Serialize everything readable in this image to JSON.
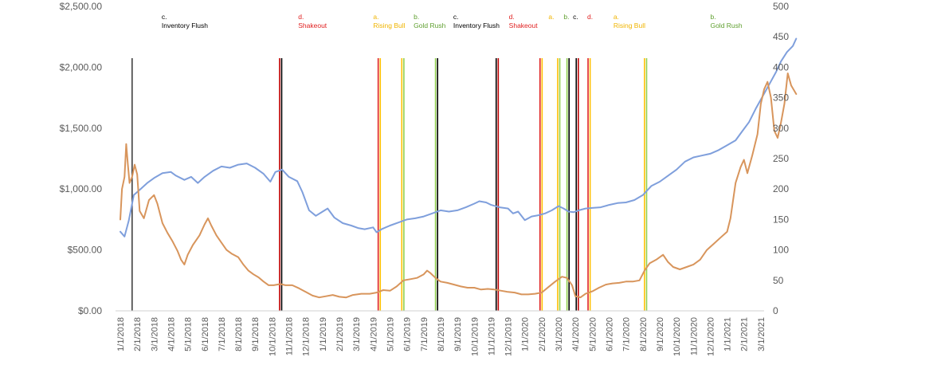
{
  "chart_data": {
    "type": "line",
    "title": "",
    "xlabel": "",
    "ylabel_left": "",
    "ylabel_right": "",
    "ylim_left": [
      0,
      2500
    ],
    "ylim_right": [
      0,
      500
    ],
    "y_ticks_left": [
      "$0.00",
      "$500.00",
      "$1,000.00",
      "$1,500.00",
      "$2,000.00",
      "$2,500.00"
    ],
    "y_ticks_right": [
      "0",
      "50",
      "100",
      "150",
      "200",
      "250",
      "300",
      "350",
      "400",
      "450",
      "500"
    ],
    "x_ticks": [
      "1/1/2018",
      "2/1/2018",
      "3/1/2018",
      "4/1/2018",
      "5/1/2018",
      "6/1/2018",
      "7/1/2018",
      "8/1/2018",
      "9/1/2018",
      "10/1/2018",
      "11/1/2018",
      "12/1/2018",
      "1/1/2019",
      "2/1/2019",
      "3/1/2019",
      "4/1/2019",
      "5/1/2019",
      "6/1/2019",
      "7/1/2019",
      "8/1/2019",
      "9/1/2019",
      "10/1/2019",
      "11/1/2019",
      "12/1/2019",
      "1/1/2020",
      "2/1/2020",
      "3/1/2020",
      "4/1/2020",
      "5/1/2020",
      "6/1/2020",
      "7/1/2020",
      "8/1/2020",
      "9/1/2020",
      "10/1/2020",
      "11/1/2020",
      "12/1/2020",
      "1/1/2021",
      "2/1/2021",
      "3/1/2021"
    ],
    "grid": false,
    "legend": "none",
    "series": [
      {
        "axis": "right",
        "color": "#7f9fdc",
        "points": [
          [
            0,
            130
          ],
          [
            0.25,
            122
          ],
          [
            0.5,
            148
          ],
          [
            0.8,
            190
          ],
          [
            1.2,
            200
          ],
          [
            1.6,
            210
          ],
          [
            2.0,
            218
          ],
          [
            2.5,
            226
          ],
          [
            3.0,
            228
          ],
          [
            3.3,
            222
          ],
          [
            3.8,
            215
          ],
          [
            4.2,
            220
          ],
          [
            4.6,
            210
          ],
          [
            5.0,
            220
          ],
          [
            5.5,
            230
          ],
          [
            6.0,
            237
          ],
          [
            6.5,
            235
          ],
          [
            7.0,
            240
          ],
          [
            7.5,
            242
          ],
          [
            8.0,
            235
          ],
          [
            8.5,
            225
          ],
          [
            8.9,
            212
          ],
          [
            9.2,
            228
          ],
          [
            9.6,
            232
          ],
          [
            10.0,
            220
          ],
          [
            10.5,
            213
          ],
          [
            10.8,
            195
          ],
          [
            11.2,
            165
          ],
          [
            11.6,
            156
          ],
          [
            12.0,
            163
          ],
          [
            12.3,
            168
          ],
          [
            12.7,
            153
          ],
          [
            13.2,
            144
          ],
          [
            13.7,
            140
          ],
          [
            14.1,
            136
          ],
          [
            14.5,
            134
          ],
          [
            15.0,
            137
          ],
          [
            15.2,
            129
          ],
          [
            15.5,
            134
          ],
          [
            16.0,
            140
          ],
          [
            16.5,
            145
          ],
          [
            17.0,
            150
          ],
          [
            17.5,
            152
          ],
          [
            18.0,
            155
          ],
          [
            18.5,
            160
          ],
          [
            19.0,
            165
          ],
          [
            19.5,
            163
          ],
          [
            20.0,
            165
          ],
          [
            20.5,
            170
          ],
          [
            21.0,
            176
          ],
          [
            21.3,
            180
          ],
          [
            21.7,
            178
          ],
          [
            22.0,
            174
          ],
          [
            22.5,
            170
          ],
          [
            23.0,
            168
          ],
          [
            23.3,
            160
          ],
          [
            23.6,
            163
          ],
          [
            24.0,
            149
          ],
          [
            24.4,
            155
          ],
          [
            24.8,
            157
          ],
          [
            25.2,
            160
          ],
          [
            25.6,
            165
          ],
          [
            26.0,
            172
          ],
          [
            26.3,
            168
          ],
          [
            26.6,
            163
          ],
          [
            26.9,
            162
          ],
          [
            27.2,
            165
          ],
          [
            27.6,
            168
          ],
          [
            28.0,
            169
          ],
          [
            28.5,
            170
          ],
          [
            29.0,
            174
          ],
          [
            29.5,
            177
          ],
          [
            30.0,
            178
          ],
          [
            30.5,
            182
          ],
          [
            31.0,
            190
          ],
          [
            31.5,
            205
          ],
          [
            32.0,
            212
          ],
          [
            32.5,
            222
          ],
          [
            33.0,
            232
          ],
          [
            33.5,
            245
          ],
          [
            34.0,
            252
          ],
          [
            34.5,
            255
          ],
          [
            35.0,
            258
          ],
          [
            35.5,
            264
          ],
          [
            36.0,
            272
          ],
          [
            36.5,
            280
          ],
          [
            36.9,
            295
          ],
          [
            37.3,
            310
          ],
          [
            37.7,
            332
          ],
          [
            38.1,
            352
          ],
          [
            38.5,
            372
          ],
          [
            38.9,
            392
          ],
          [
            39.2,
            410
          ],
          [
            39.55,
            425
          ],
          [
            39.9,
            435
          ],
          [
            40.1,
            447
          ]
        ]
      },
      {
        "axis": "left",
        "color": "#d8955c",
        "points": [
          [
            0,
            750
          ],
          [
            0.1,
            1000
          ],
          [
            0.25,
            1100
          ],
          [
            0.35,
            1370
          ],
          [
            0.45,
            1200
          ],
          [
            0.55,
            1050
          ],
          [
            0.7,
            1100
          ],
          [
            0.85,
            1200
          ],
          [
            1.0,
            1120
          ],
          [
            1.15,
            820
          ],
          [
            1.4,
            760
          ],
          [
            1.7,
            910
          ],
          [
            2.0,
            950
          ],
          [
            2.2,
            880
          ],
          [
            2.5,
            720
          ],
          [
            2.8,
            640
          ],
          [
            3.1,
            570
          ],
          [
            3.4,
            490
          ],
          [
            3.6,
            420
          ],
          [
            3.8,
            380
          ],
          [
            4.0,
            460
          ],
          [
            4.3,
            540
          ],
          [
            4.7,
            620
          ],
          [
            5.0,
            710
          ],
          [
            5.2,
            760
          ],
          [
            5.4,
            700
          ],
          [
            5.7,
            620
          ],
          [
            6.0,
            560
          ],
          [
            6.3,
            500
          ],
          [
            6.6,
            470
          ],
          [
            7.0,
            440
          ],
          [
            7.3,
            380
          ],
          [
            7.6,
            330
          ],
          [
            7.9,
            300
          ],
          [
            8.2,
            275
          ],
          [
            8.5,
            240
          ],
          [
            8.8,
            210
          ],
          [
            9.1,
            210
          ],
          [
            9.5,
            220
          ],
          [
            9.8,
            210
          ],
          [
            10.2,
            210
          ],
          [
            10.6,
            185
          ],
          [
            11.0,
            155
          ],
          [
            11.4,
            125
          ],
          [
            11.8,
            110
          ],
          [
            12.2,
            120
          ],
          [
            12.6,
            130
          ],
          [
            13.0,
            115
          ],
          [
            13.4,
            110
          ],
          [
            13.8,
            130
          ],
          [
            14.3,
            140
          ],
          [
            14.8,
            140
          ],
          [
            15.2,
            150
          ],
          [
            15.6,
            170
          ],
          [
            16.0,
            165
          ],
          [
            16.4,
            200
          ],
          [
            16.8,
            250
          ],
          [
            17.2,
            260
          ],
          [
            17.6,
            270
          ],
          [
            18.0,
            300
          ],
          [
            18.2,
            330
          ],
          [
            18.4,
            310
          ],
          [
            18.7,
            270
          ],
          [
            19.0,
            240
          ],
          [
            19.4,
            230
          ],
          [
            19.8,
            215
          ],
          [
            20.2,
            200
          ],
          [
            20.6,
            190
          ],
          [
            21.0,
            190
          ],
          [
            21.4,
            175
          ],
          [
            21.8,
            180
          ],
          [
            22.2,
            175
          ],
          [
            22.6,
            165
          ],
          [
            23.0,
            155
          ],
          [
            23.4,
            150
          ],
          [
            23.8,
            135
          ],
          [
            24.2,
            135
          ],
          [
            24.6,
            140
          ],
          [
            25.0,
            150
          ],
          [
            25.4,
            195
          ],
          [
            25.8,
            240
          ],
          [
            26.2,
            280
          ],
          [
            26.5,
            270
          ],
          [
            26.8,
            210
          ],
          [
            27.0,
            120
          ],
          [
            27.3,
            110
          ],
          [
            27.6,
            140
          ],
          [
            28.0,
            160
          ],
          [
            28.4,
            190
          ],
          [
            28.8,
            215
          ],
          [
            29.2,
            225
          ],
          [
            29.6,
            230
          ],
          [
            30.0,
            240
          ],
          [
            30.4,
            240
          ],
          [
            30.8,
            250
          ],
          [
            31.1,
            330
          ],
          [
            31.4,
            390
          ],
          [
            31.8,
            420
          ],
          [
            32.2,
            460
          ],
          [
            32.5,
            400
          ],
          [
            32.8,
            360
          ],
          [
            33.2,
            340
          ],
          [
            33.6,
            360
          ],
          [
            34.0,
            380
          ],
          [
            34.4,
            420
          ],
          [
            34.8,
            500
          ],
          [
            35.2,
            550
          ],
          [
            35.6,
            600
          ],
          [
            36.0,
            650
          ],
          [
            36.2,
            760
          ],
          [
            36.5,
            1050
          ],
          [
            36.8,
            1180
          ],
          [
            37.0,
            1240
          ],
          [
            37.2,
            1130
          ],
          [
            37.5,
            1280
          ],
          [
            37.8,
            1450
          ],
          [
            38.0,
            1700
          ],
          [
            38.2,
            1820
          ],
          [
            38.4,
            1880
          ],
          [
            38.6,
            1750
          ],
          [
            38.8,
            1480
          ],
          [
            39.0,
            1420
          ],
          [
            39.2,
            1550
          ],
          [
            39.4,
            1700
          ],
          [
            39.6,
            1950
          ],
          [
            39.8,
            1850
          ],
          [
            40.1,
            1780
          ]
        ]
      }
    ],
    "phase_markers": [
      {
        "x": 0.7,
        "lines": [
          "#404040"
        ]
      },
      {
        "x": 9.45,
        "lines": [
          "#c00000",
          "#000000"
        ]
      },
      {
        "x": 15.3,
        "lines": [
          "#e02020",
          "#ffc000"
        ]
      },
      {
        "x": 16.7,
        "lines": [
          "#ffc000",
          "#92d050"
        ]
      },
      {
        "x": 18.7,
        "lines": [
          "#92d050",
          "#000000"
        ]
      },
      {
        "x": 22.3,
        "lines": [
          "#000000",
          "#c00000"
        ]
      },
      {
        "x": 24.9,
        "lines": [
          "#e02020",
          "#ffc000"
        ]
      },
      {
        "x": 25.95,
        "lines": [
          "#ffc000",
          "#92d050"
        ]
      },
      {
        "x": 26.5,
        "lines": [
          "#92d050",
          "#000000"
        ]
      },
      {
        "x": 27.05,
        "lines": [
          "#000000",
          "#c00000"
        ]
      },
      {
        "x": 27.75,
        "lines": [
          "#e02020",
          "#ffc000"
        ]
      },
      {
        "x": 31.1,
        "lines": [
          "#ffc000",
          "#92d050"
        ]
      }
    ],
    "phase_labels": [
      {
        "x": 2.5,
        "code": "c.",
        "name": "Inventory Flush",
        "color": "#000000"
      },
      {
        "x": 10.6,
        "code": "d.",
        "name": "Shakeout",
        "color": "#e02020"
      },
      {
        "x": 15.05,
        "code": "a.",
        "name": "Rising Bull",
        "color": "#f0b400"
      },
      {
        "x": 17.45,
        "code": "b.",
        "name": "Gold Rush",
        "color": "#60a030"
      },
      {
        "x": 19.8,
        "code": "c.",
        "name": "Inventory Flush",
        "color": "#000000"
      },
      {
        "x": 23.1,
        "code": "d.",
        "name": "Shakeout",
        "color": "#e02020"
      },
      {
        "x": 25.45,
        "code": "a.",
        "name": "",
        "color": "#f0b400"
      },
      {
        "x": 26.35,
        "code": "b.",
        "name": "",
        "color": "#60a030"
      },
      {
        "x": 26.9,
        "code": "c.",
        "name": "",
        "color": "#000000"
      },
      {
        "x": 27.75,
        "code": "d.",
        "name": "",
        "color": "#e02020"
      },
      {
        "x": 29.3,
        "code": "a.",
        "name": "Rising Bull",
        "color": "#f0b400"
      },
      {
        "x": 35.05,
        "code": "b.",
        "name": "Gold Rush",
        "color": "#60a030"
      }
    ]
  }
}
